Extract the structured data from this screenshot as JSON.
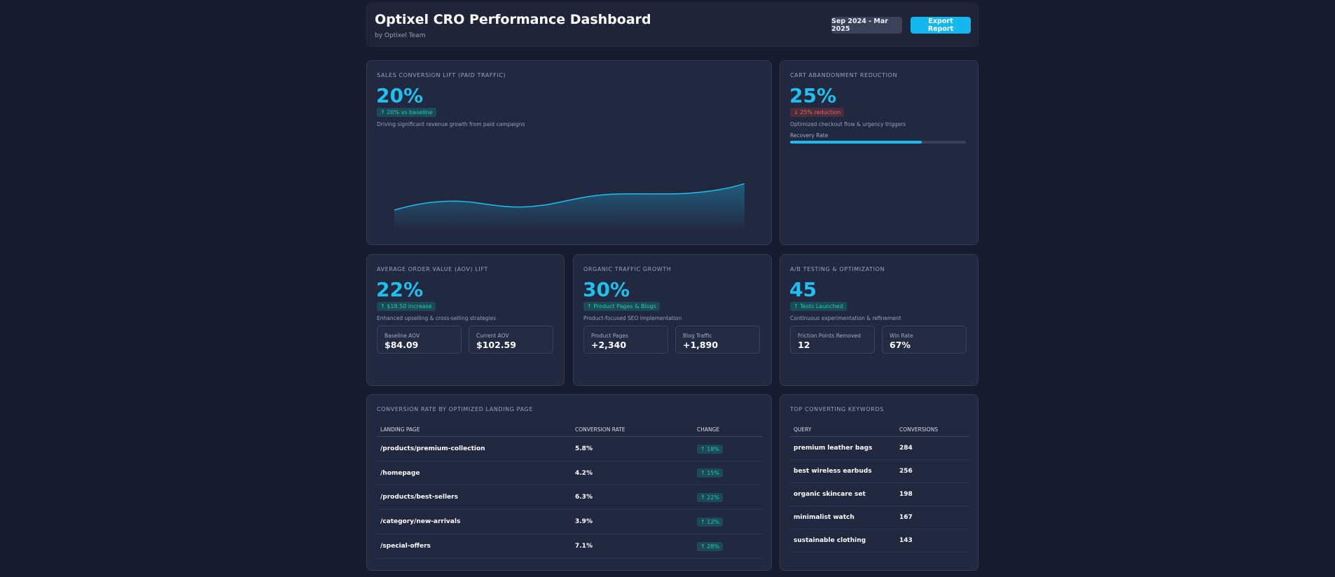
{
  "header": {
    "title": "Optixel CRO Performance Dashboard",
    "subtitle": "by Optixel Team",
    "date_range": "Sep 2024 - Mar 2025",
    "export_label": "Export Report"
  },
  "sales": {
    "label": "Sales Conversion Lift (Paid Traffic)",
    "value": "20%",
    "chip": "↑ 20% vs baseline",
    "description": "Driving significant revenue growth from paid campaigns",
    "accent": "#1ec0ee"
  },
  "cart": {
    "label": "Cart Abandonment Reduction",
    "value": "25%",
    "chip": "↓ 25% reduction",
    "description": "Optimized checkout flow & urgency triggers",
    "progress_label": "Recovery Rate",
    "progress_fraction": 0.75
  },
  "aov": {
    "label": "Average Order Value (AOV) Lift",
    "value": "22%",
    "chip": "↑ $18.50 increase",
    "description": "Enhanced upselling & cross-selling strategies",
    "metrics": [
      {
        "label": "Baseline AOV",
        "value": "$84.09"
      },
      {
        "label": "Current AOV",
        "value": "$102.59"
      }
    ]
  },
  "organic": {
    "label": "Organic Traffic Growth",
    "value": "30%",
    "chip": "↑ Product Pages & Blogs",
    "description": "Product-focused SEO implementation",
    "metrics": [
      {
        "label": "Product Pages",
        "value": "+2,340"
      },
      {
        "label": "Blog Traffic",
        "value": "+1,890"
      }
    ]
  },
  "ab": {
    "label": "A/B Testing & Optimization",
    "value": "45",
    "chip": "↑ Tests Launched",
    "description": "Continuous experimentation & refinement",
    "metrics": [
      {
        "label": "Friction Points Removed",
        "value": "12"
      },
      {
        "label": "Win Rate",
        "value": "67%"
      }
    ]
  },
  "landing": {
    "label": "Conversion Rate by Optimized Landing Page",
    "columns": [
      "Landing Page",
      "Conversion Rate",
      "Change"
    ],
    "rows": [
      {
        "page": "/products/premium-collection",
        "rate": "5.8%",
        "change": "↑ 18%"
      },
      {
        "page": "/homepage",
        "rate": "4.2%",
        "change": "↑ 15%"
      },
      {
        "page": "/products/best-sellers",
        "rate": "6.3%",
        "change": "↑ 22%"
      },
      {
        "page": "/category/new-arrivals",
        "rate": "3.9%",
        "change": "↑ 12%"
      },
      {
        "page": "/special-offers",
        "rate": "7.1%",
        "change": "↑ 28%"
      }
    ]
  },
  "keywords": {
    "label": "Top Converting Keywords",
    "columns": [
      "Query",
      "Conversions"
    ],
    "rows": [
      {
        "query": "premium leather bags",
        "conversions": "284"
      },
      {
        "query": "best wireless earbuds",
        "conversions": "256"
      },
      {
        "query": "organic skincare set",
        "conversions": "198"
      },
      {
        "query": "minimalist watch",
        "conversions": "167"
      },
      {
        "query": "sustainable clothing",
        "conversions": "143"
      }
    ]
  }
}
